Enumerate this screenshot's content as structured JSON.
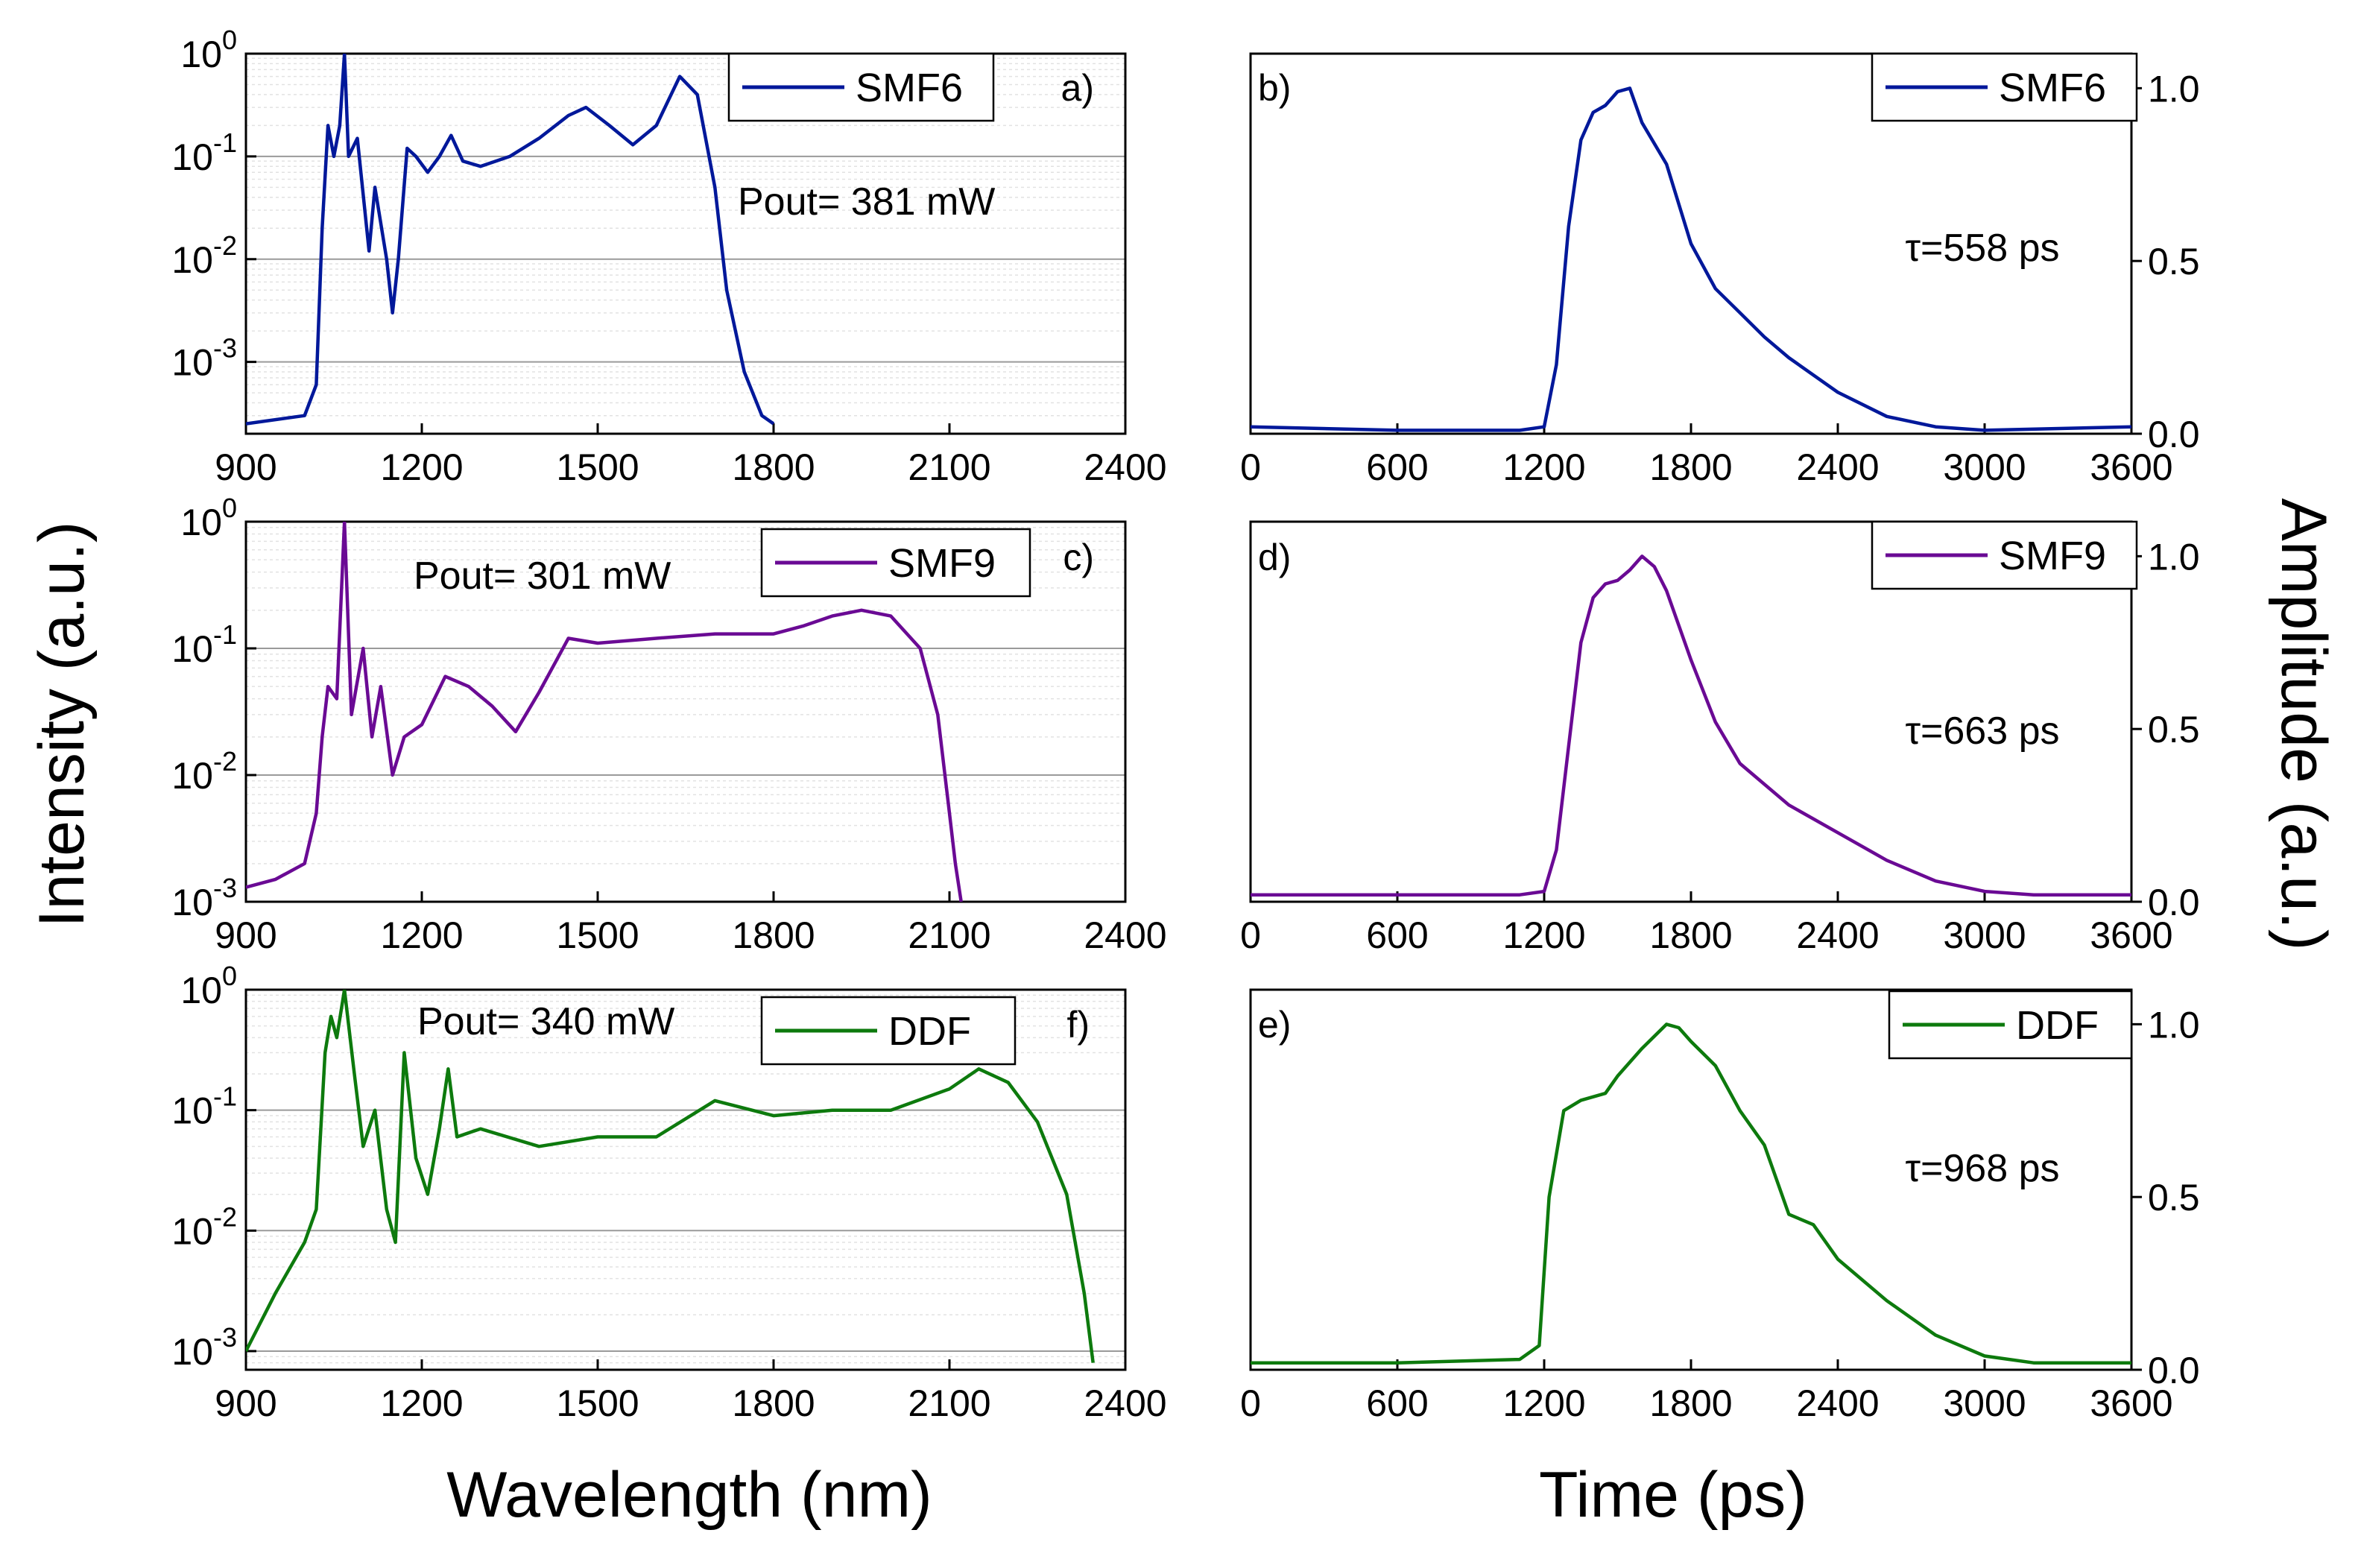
{
  "figure": {
    "shared_y_label_left": "Intensity (a.u.)",
    "shared_y_label_right": "Amplitude (a.u.)",
    "shared_x_label_left": "Wavelength (nm)",
    "shared_x_label_right": "Time (ps)"
  },
  "chart_data": [
    {
      "id": "a",
      "type": "line",
      "panel_label": "a)",
      "legend": "SMF6",
      "annotation": "Pout= 381 mW",
      "color": "#00189a",
      "x_axis": {
        "label": "Wavelength (nm)",
        "range": [
          900,
          2400
        ],
        "ticks": [
          900,
          1200,
          1500,
          1800,
          2100,
          2400
        ]
      },
      "y_axis": {
        "label": "Intensity (a.u.)",
        "scale": "log",
        "range": [
          0.0002,
          1
        ],
        "ticks": [
          0.001,
          0.01,
          0.1,
          1
        ],
        "tick_labels": [
          {
            "base": "10",
            "exp": "-3"
          },
          {
            "base": "10",
            "exp": "-2"
          },
          {
            "base": "10",
            "exp": "-1"
          },
          {
            "base": "10",
            "exp": "0"
          }
        ]
      },
      "series": [
        {
          "name": "SMF6",
          "x": [
            900,
            1000,
            1020,
            1030,
            1040,
            1050,
            1060,
            1068,
            1075,
            1090,
            1110,
            1120,
            1140,
            1150,
            1160,
            1175,
            1190,
            1210,
            1230,
            1250,
            1270,
            1300,
            1350,
            1400,
            1450,
            1480,
            1520,
            1560,
            1600,
            1640,
            1670,
            1700,
            1720,
            1750,
            1780,
            1800
          ],
          "y": [
            0.00025,
            0.0003,
            0.0006,
            0.02,
            0.2,
            0.1,
            0.2,
            1.0,
            0.1,
            0.15,
            0.012,
            0.05,
            0.01,
            0.003,
            0.01,
            0.12,
            0.1,
            0.07,
            0.1,
            0.16,
            0.09,
            0.08,
            0.1,
            0.15,
            0.25,
            0.3,
            0.2,
            0.13,
            0.2,
            0.6,
            0.4,
            0.05,
            0.005,
            0.0008,
            0.0003,
            0.00025
          ]
        }
      ]
    },
    {
      "id": "b",
      "type": "line",
      "panel_label": "b)",
      "legend": "SMF6",
      "annotation": "τ=558 ps",
      "color": "#00189a",
      "x_axis": {
        "label": "Time (ps)",
        "range": [
          0,
          3600
        ],
        "ticks": [
          0,
          600,
          1200,
          1800,
          2400,
          3000,
          3600
        ]
      },
      "y_axis": {
        "label": "Amplitude (a.u.)",
        "scale": "linear",
        "range": [
          0,
          1.1
        ],
        "ticks": [
          0.0,
          0.5,
          1.0
        ],
        "tick_labels": [
          "0.0",
          "0.5",
          "1.0"
        ]
      },
      "series": [
        {
          "name": "SMF6",
          "x": [
            0,
            600,
            1100,
            1200,
            1250,
            1300,
            1350,
            1400,
            1450,
            1500,
            1550,
            1600,
            1700,
            1800,
            1900,
            2000,
            2100,
            2200,
            2400,
            2600,
            2800,
            3000,
            3600
          ],
          "y": [
            0.02,
            0.01,
            0.01,
            0.02,
            0.2,
            0.6,
            0.85,
            0.93,
            0.95,
            0.99,
            1.0,
            0.9,
            0.78,
            0.55,
            0.42,
            0.35,
            0.28,
            0.22,
            0.12,
            0.05,
            0.02,
            0.01,
            0.02
          ]
        }
      ]
    },
    {
      "id": "c",
      "type": "line",
      "panel_label": "c)",
      "legend": "SMF9",
      "annotation": "Pout= 301 mW",
      "color": "#6a0a94",
      "x_axis": {
        "label": "Wavelength (nm)",
        "range": [
          900,
          2400
        ],
        "ticks": [
          900,
          1200,
          1500,
          1800,
          2100,
          2400
        ]
      },
      "y_axis": {
        "label": "Intensity (a.u.)",
        "scale": "log",
        "range": [
          0.001,
          1
        ],
        "ticks": [
          0.001,
          0.01,
          0.1,
          1
        ],
        "tick_labels": [
          {
            "base": "10",
            "exp": "-3"
          },
          {
            "base": "10",
            "exp": "-2"
          },
          {
            "base": "10",
            "exp": "-1"
          },
          {
            "base": "10",
            "exp": "0"
          }
        ]
      },
      "series": [
        {
          "name": "SMF9",
          "x": [
            900,
            950,
            1000,
            1020,
            1030,
            1040,
            1055,
            1068,
            1080,
            1100,
            1115,
            1130,
            1150,
            1170,
            1200,
            1240,
            1280,
            1320,
            1360,
            1400,
            1450,
            1500,
            1600,
            1700,
            1800,
            1850,
            1900,
            1950,
            2000,
            2050,
            2080,
            2100,
            2110,
            2120
          ],
          "y": [
            0.0013,
            0.0015,
            0.002,
            0.005,
            0.02,
            0.05,
            0.04,
            1.0,
            0.03,
            0.1,
            0.02,
            0.05,
            0.01,
            0.02,
            0.025,
            0.06,
            0.05,
            0.035,
            0.022,
            0.045,
            0.12,
            0.11,
            0.12,
            0.13,
            0.13,
            0.15,
            0.18,
            0.2,
            0.18,
            0.1,
            0.03,
            0.005,
            0.002,
            0.001
          ]
        }
      ]
    },
    {
      "id": "d",
      "type": "line",
      "panel_label": "d)",
      "legend": "SMF9",
      "annotation": "τ=663 ps",
      "color": "#6a0a94",
      "x_axis": {
        "label": "Time (ps)",
        "range": [
          0,
          3600
        ],
        "ticks": [
          0,
          600,
          1200,
          1800,
          2400,
          3000,
          3600
        ]
      },
      "y_axis": {
        "label": "Amplitude (a.u.)",
        "scale": "linear",
        "range": [
          0,
          1.1
        ],
        "ticks": [
          0.0,
          0.5,
          1.0
        ],
        "tick_labels": [
          "0.0",
          "0.5",
          "1.0"
        ]
      },
      "series": [
        {
          "name": "SMF9",
          "x": [
            0,
            600,
            1100,
            1200,
            1250,
            1300,
            1350,
            1400,
            1450,
            1500,
            1550,
            1600,
            1650,
            1700,
            1800,
            1900,
            2000,
            2200,
            2400,
            2600,
            2800,
            3000,
            3200,
            3600
          ],
          "y": [
            0.02,
            0.02,
            0.02,
            0.03,
            0.15,
            0.45,
            0.75,
            0.88,
            0.92,
            0.93,
            0.96,
            1.0,
            0.97,
            0.9,
            0.7,
            0.52,
            0.4,
            0.28,
            0.2,
            0.12,
            0.06,
            0.03,
            0.02,
            0.02
          ]
        }
      ]
    },
    {
      "id": "f",
      "type": "line",
      "panel_label": "f)",
      "legend": "DDF",
      "annotation": "Pout= 340 mW",
      "color": "#0d7a0d",
      "x_axis": {
        "label": "Wavelength (nm)",
        "range": [
          900,
          2400
        ],
        "ticks": [
          900,
          1200,
          1500,
          1800,
          2100,
          2400
        ]
      },
      "y_axis": {
        "label": "Intensity (a.u.)",
        "scale": "log",
        "range": [
          0.0007,
          1
        ],
        "ticks": [
          0.001,
          0.01,
          0.1,
          1
        ],
        "tick_labels": [
          {
            "base": "10",
            "exp": "-3"
          },
          {
            "base": "10",
            "exp": "-2"
          },
          {
            "base": "10",
            "exp": "-1"
          },
          {
            "base": "10",
            "exp": "0"
          }
        ]
      },
      "series": [
        {
          "name": "DDF",
          "x": [
            900,
            950,
            1000,
            1020,
            1035,
            1045,
            1055,
            1068,
            1085,
            1100,
            1120,
            1140,
            1155,
            1170,
            1190,
            1210,
            1230,
            1245,
            1260,
            1300,
            1400,
            1500,
            1600,
            1700,
            1800,
            1900,
            2000,
            2100,
            2150,
            2200,
            2250,
            2300,
            2330,
            2345
          ],
          "y": [
            0.001,
            0.003,
            0.008,
            0.015,
            0.3,
            0.6,
            0.4,
            1.0,
            0.2,
            0.05,
            0.1,
            0.015,
            0.008,
            0.3,
            0.04,
            0.02,
            0.07,
            0.22,
            0.06,
            0.07,
            0.05,
            0.06,
            0.06,
            0.12,
            0.09,
            0.1,
            0.1,
            0.15,
            0.22,
            0.17,
            0.08,
            0.02,
            0.003,
            0.0008
          ]
        }
      ]
    },
    {
      "id": "e",
      "type": "line",
      "panel_label": "e)",
      "legend": "DDF",
      "annotation": "τ=968 ps",
      "color": "#0d7a0d",
      "x_axis": {
        "label": "Time (ps)",
        "range": [
          0,
          3600
        ],
        "ticks": [
          0,
          600,
          1200,
          1800,
          2400,
          3000,
          3600
        ]
      },
      "y_axis": {
        "label": "Amplitude (a.u.)",
        "scale": "linear",
        "range": [
          0,
          1.1
        ],
        "ticks": [
          0.0,
          0.5,
          1.0
        ],
        "tick_labels": [
          "0.0",
          "0.5",
          "1.0"
        ]
      },
      "series": [
        {
          "name": "DDF",
          "x": [
            0,
            600,
            1100,
            1180,
            1220,
            1280,
            1350,
            1450,
            1500,
            1600,
            1700,
            1750,
            1800,
            1900,
            2000,
            2100,
            2200,
            2300,
            2400,
            2600,
            2800,
            3000,
            3200,
            3600
          ],
          "y": [
            0.02,
            0.02,
            0.03,
            0.07,
            0.5,
            0.75,
            0.78,
            0.8,
            0.85,
            0.93,
            1.0,
            0.99,
            0.95,
            0.88,
            0.75,
            0.65,
            0.45,
            0.42,
            0.32,
            0.2,
            0.1,
            0.04,
            0.02,
            0.02
          ]
        }
      ]
    }
  ]
}
